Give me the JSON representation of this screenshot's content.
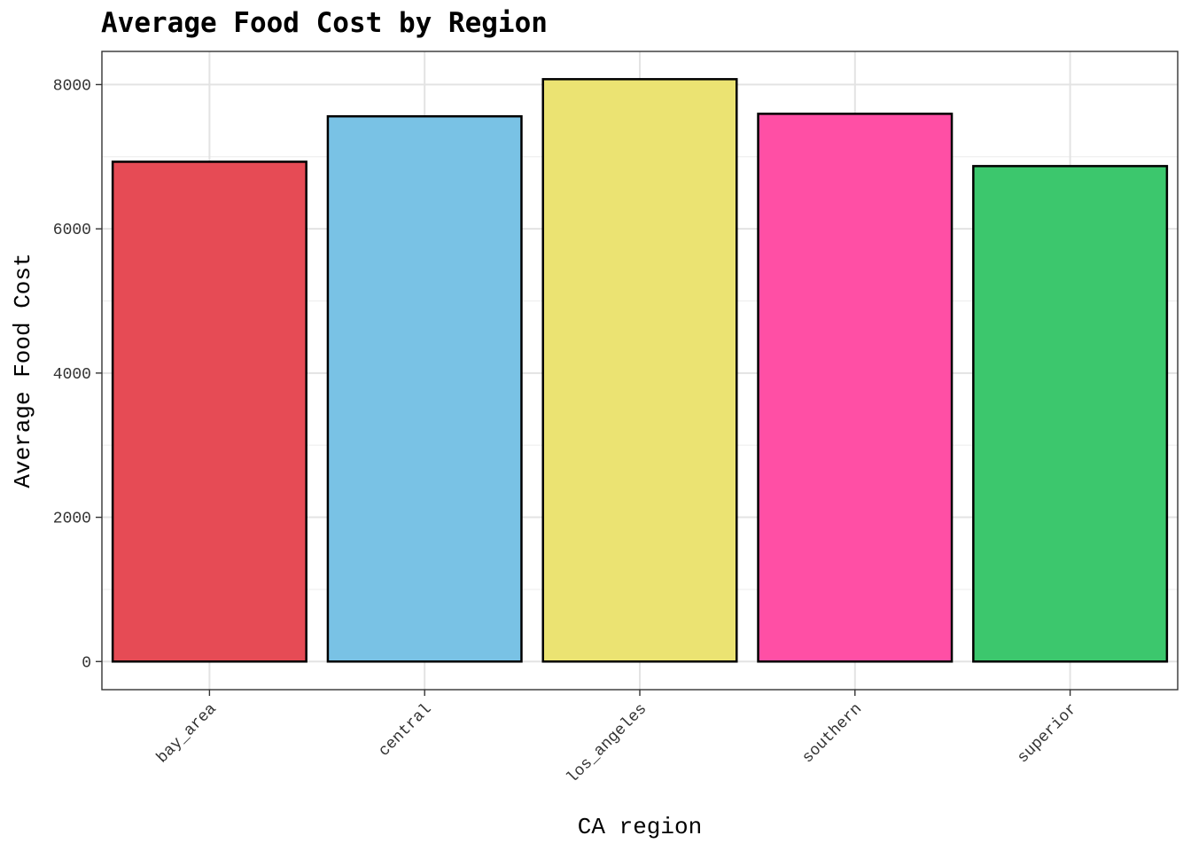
{
  "chart_data": {
    "type": "bar",
    "title": "Average Food Cost by Region",
    "xlabel": "CA region",
    "ylabel": "Average Food Cost",
    "categories": [
      "bay_area",
      "central",
      "los_angeles",
      "southern",
      "superior"
    ],
    "values": [
      6930,
      7560,
      8075,
      7595,
      6870
    ],
    "colors": [
      "#E64B55",
      "#79C2E5",
      "#EBE372",
      "#FF4FA5",
      "#3CC76D"
    ],
    "ylim": [
      -390,
      8460
    ],
    "yticks": [
      0,
      2000,
      4000,
      6000,
      8000
    ],
    "ytick_labels": [
      "0",
      "2000",
      "4000",
      "6000",
      "8000"
    ],
    "grid": true,
    "legend": "none"
  }
}
